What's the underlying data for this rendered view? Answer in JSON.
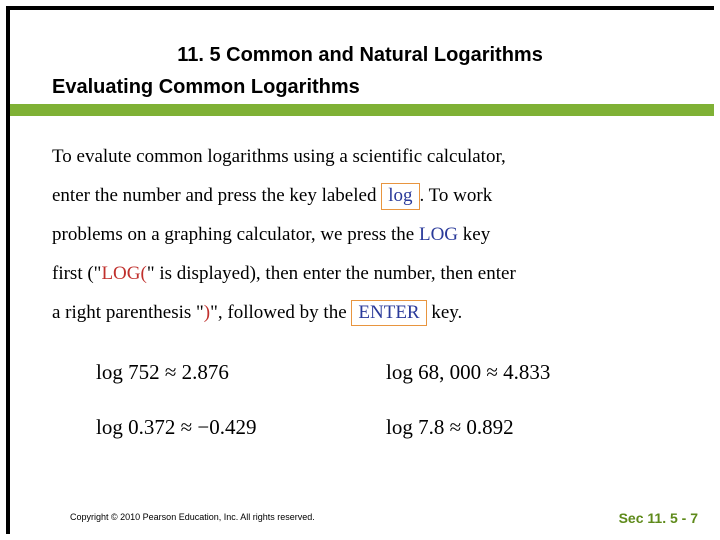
{
  "header": {
    "title": "11. 5 Common and Natural Logarithms",
    "subtitle": "Evaluating Common Logarithms"
  },
  "accent_colors": {
    "green_bar": "#7fb135",
    "key_border": "#e8953f",
    "blue": "#2a3a9a",
    "red": "#c0302d",
    "footer_green": "#5e8a1a"
  },
  "body": {
    "p1a": "To evalute common logarithms using a scientific calculator,",
    "p1b": "enter the number and press the key labeled ",
    "logkey": "log",
    "p1c": ".  To work",
    "p2a": "problems on a graphing calculator, we press the ",
    "logword": "LOG",
    "p2b": " key",
    "p3a": "first (\"",
    "logparen": "LOG(",
    "p3b": "\" is displayed), then enter the number, then enter",
    "p4a": "a right parenthesis \"",
    "rparen": ")",
    "p4b": "\", followed by the ",
    "enterkey": "ENTER",
    "p4c": " key."
  },
  "examples": [
    {
      "left": "log 752 ≈ 2.876",
      "right": "log 68, 000 ≈ 4.833"
    },
    {
      "left": "log 0.372 ≈ −0.429",
      "right": "log 7.8 ≈ 0.892"
    }
  ],
  "footer": {
    "copyright": "Copyright © 2010 Pearson Education, Inc. All rights reserved.",
    "section": "Sec 11. 5 - 7"
  }
}
